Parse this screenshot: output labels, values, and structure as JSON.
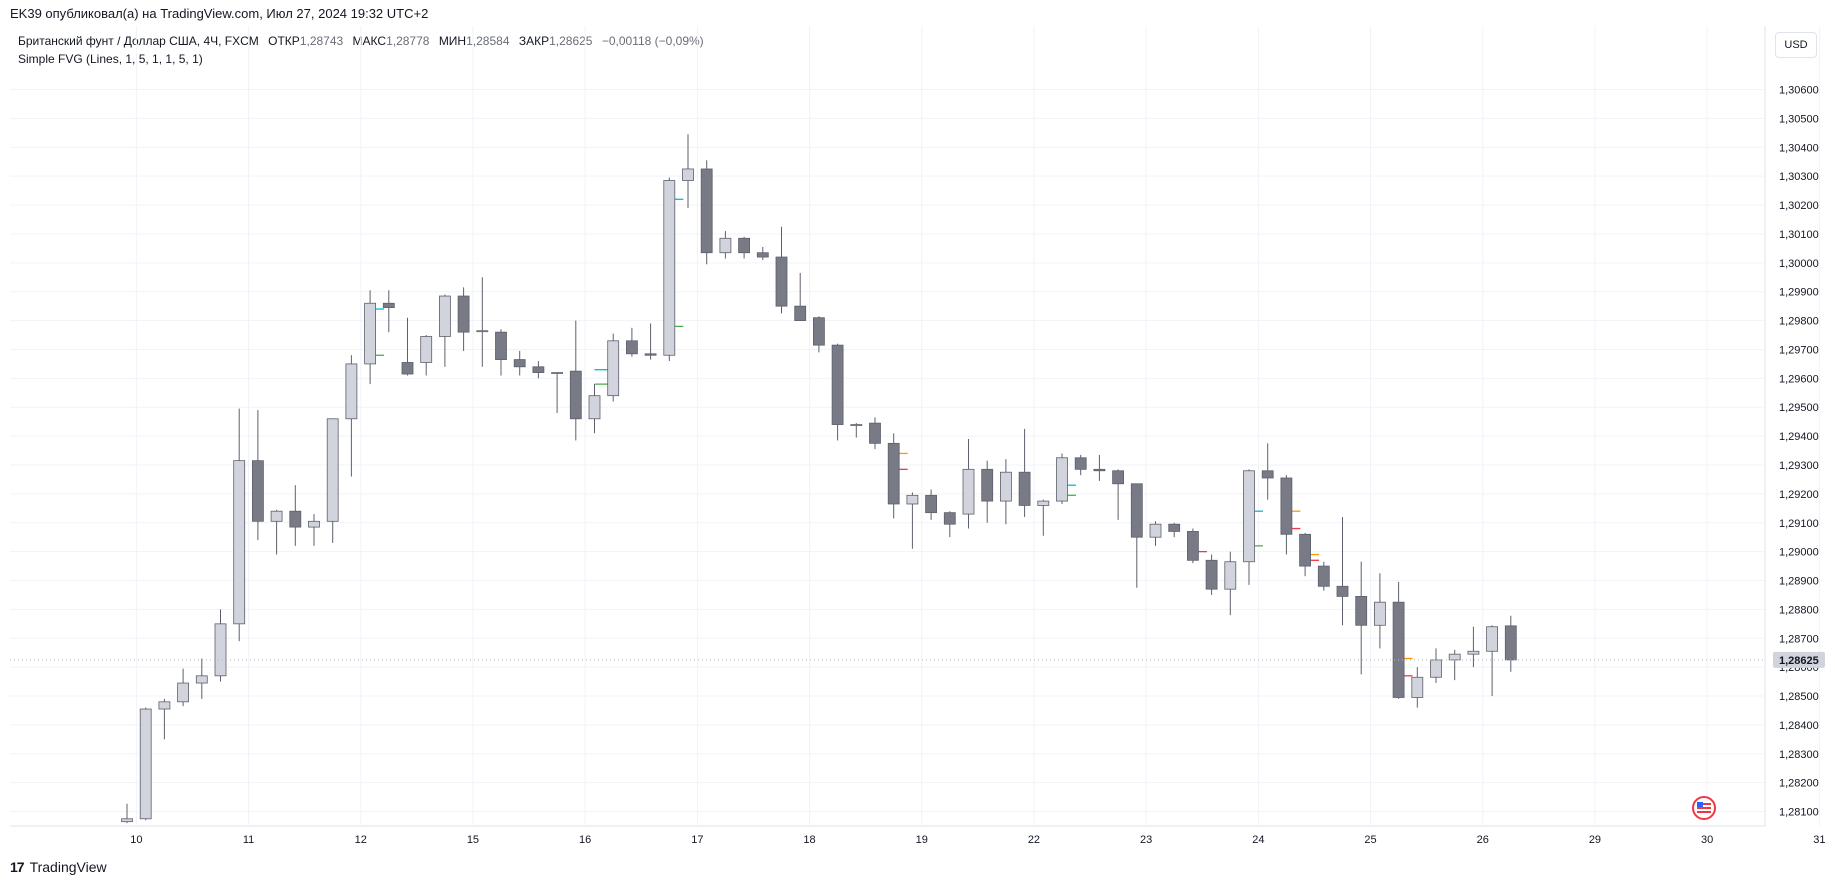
{
  "header": {
    "published": "EK39 опубликовал(а) на TradingView.com, Июл 27, 2024 19:32 UTC+2"
  },
  "legend": {
    "symbol": "Британский фунт / Доллар США, 4Ч, FXCM",
    "open_label": "ОТКР",
    "open": "1,28743",
    "high_label": "МАКС",
    "high": "1,28778",
    "low_label": "МИН",
    "low": "1,28584",
    "close_label": "ЗАКР",
    "close": "1,28625",
    "change": "−0,00118 (−0,09%)",
    "indicator": "Simple FVG (Lines, 1, 5, 1, 1, 5, 1)"
  },
  "currency_button": "USD",
  "footer": {
    "brand": "TradingView",
    "logo": "17"
  },
  "colors": {
    "bull": "#d1d4dc",
    "bear": "#787b86",
    "wick": "#5d606b",
    "grid": "#f0f3fa",
    "fvg_cyan": "#00bcd4",
    "fvg_green": "#4caf50",
    "fvg_red": "#f23645",
    "fvg_orange": "#ff9800"
  },
  "chart_data": {
    "type": "candlestick",
    "timeframe": "4Ч",
    "ylim": [
      1.2805,
      1.3073
    ],
    "y_ticks": [
      "1,28100",
      "1,28200",
      "1,28300",
      "1,28400",
      "1,28500",
      "1,28600",
      "1,28700",
      "1,28800",
      "1,28900",
      "1,29000",
      "1,29100",
      "1,29200",
      "1,29300",
      "1,29400",
      "1,29500",
      "1,29600",
      "1,29700",
      "1,29800",
      "1,29900",
      "1,30000",
      "1,30100",
      "1,30200",
      "1,30300",
      "1,30400",
      "1,30500",
      "1,30600"
    ],
    "x_ticks": [
      {
        "label": "10",
        "bar": 0.5
      },
      {
        "label": "11",
        "bar": 6.5
      },
      {
        "label": "12",
        "bar": 12.5
      },
      {
        "label": "15",
        "bar": 18.5
      },
      {
        "label": "16",
        "bar": 24.5
      },
      {
        "label": "17",
        "bar": 30.5
      },
      {
        "label": "18",
        "bar": 36.5
      },
      {
        "label": "19",
        "bar": 42.5
      },
      {
        "label": "22",
        "bar": 48.5
      },
      {
        "label": "23",
        "bar": 54.5
      },
      {
        "label": "24",
        "bar": 60.5
      },
      {
        "label": "25",
        "bar": 66.5
      },
      {
        "label": "26",
        "bar": 72.5
      },
      {
        "label": "29",
        "bar": 78.5
      },
      {
        "label": "30",
        "bar": 84.5
      },
      {
        "label": "31",
        "bar": 90.5
      }
    ],
    "last_price": "1,28625",
    "candles": [
      {
        "o": 1.28065,
        "h": 1.28127,
        "l": 1.2806,
        "c": 1.28075
      },
      {
        "o": 1.28075,
        "h": 1.2846,
        "l": 1.2807,
        "c": 1.28455
      },
      {
        "o": 1.28455,
        "h": 1.2849,
        "l": 1.2835,
        "c": 1.2848
      },
      {
        "o": 1.2848,
        "h": 1.28595,
        "l": 1.28465,
        "c": 1.28545
      },
      {
        "o": 1.28545,
        "h": 1.2863,
        "l": 1.2849,
        "c": 1.2857
      },
      {
        "o": 1.2857,
        "h": 1.288,
        "l": 1.2855,
        "c": 1.2875
      },
      {
        "o": 1.2875,
        "h": 1.29495,
        "l": 1.2869,
        "c": 1.29315
      },
      {
        "o": 1.29315,
        "h": 1.2949,
        "l": 1.2904,
        "c": 1.29105
      },
      {
        "o": 1.29105,
        "h": 1.29145,
        "l": 1.2899,
        "c": 1.2914
      },
      {
        "o": 1.2914,
        "h": 1.2923,
        "l": 1.2902,
        "c": 1.29085
      },
      {
        "o": 1.29085,
        "h": 1.2913,
        "l": 1.2902,
        "c": 1.29105
      },
      {
        "o": 1.29105,
        "h": 1.2946,
        "l": 1.2903,
        "c": 1.2946
      },
      {
        "o": 1.2946,
        "h": 1.2968,
        "l": 1.2926,
        "c": 1.2965
      },
      {
        "o": 1.2965,
        "h": 1.29905,
        "l": 1.2958,
        "c": 1.2986
      },
      {
        "o": 1.2986,
        "h": 1.29905,
        "l": 1.2976,
        "c": 1.29845
      },
      {
        "o": 1.29655,
        "h": 1.2981,
        "l": 1.2961,
        "c": 1.29615
      },
      {
        "o": 1.29655,
        "h": 1.2975,
        "l": 1.2961,
        "c": 1.29745
      },
      {
        "o": 1.29745,
        "h": 1.2989,
        "l": 1.2964,
        "c": 1.29885
      },
      {
        "o": 1.29885,
        "h": 1.29915,
        "l": 1.29695,
        "c": 1.2976
      },
      {
        "o": 1.29765,
        "h": 1.2995,
        "l": 1.2964,
        "c": 1.29765
      },
      {
        "o": 1.2976,
        "h": 1.2977,
        "l": 1.2961,
        "c": 1.29665
      },
      {
        "o": 1.29665,
        "h": 1.29695,
        "l": 1.2961,
        "c": 1.2964
      },
      {
        "o": 1.2964,
        "h": 1.2966,
        "l": 1.296,
        "c": 1.2962
      },
      {
        "o": 1.2962,
        "h": 1.2962,
        "l": 1.2948,
        "c": 1.2962
      },
      {
        "o": 1.29625,
        "h": 1.298,
        "l": 1.29385,
        "c": 1.2946
      },
      {
        "o": 1.2946,
        "h": 1.2958,
        "l": 1.2941,
        "c": 1.2954
      },
      {
        "o": 1.2954,
        "h": 1.29755,
        "l": 1.2952,
        "c": 1.2973
      },
      {
        "o": 1.2973,
        "h": 1.29775,
        "l": 1.29675,
        "c": 1.29685
      },
      {
        "o": 1.29685,
        "h": 1.2979,
        "l": 1.29665,
        "c": 1.2968
      },
      {
        "o": 1.2968,
        "h": 1.30295,
        "l": 1.2966,
        "c": 1.30285
      },
      {
        "o": 1.30285,
        "h": 1.30445,
        "l": 1.3019,
        "c": 1.30325
      },
      {
        "o": 1.30325,
        "h": 1.30355,
        "l": 1.29995,
        "c": 1.30035
      },
      {
        "o": 1.30035,
        "h": 1.3011,
        "l": 1.30015,
        "c": 1.30085
      },
      {
        "o": 1.30085,
        "h": 1.3009,
        "l": 1.30015,
        "c": 1.30035
      },
      {
        "o": 1.30035,
        "h": 1.30055,
        "l": 1.3001,
        "c": 1.3002
      },
      {
        "o": 1.3002,
        "h": 1.30125,
        "l": 1.29825,
        "c": 1.2985
      },
      {
        "o": 1.2985,
        "h": 1.29965,
        "l": 1.298,
        "c": 1.298
      },
      {
        "o": 1.2981,
        "h": 1.29815,
        "l": 1.2969,
        "c": 1.29715
      },
      {
        "o": 1.29715,
        "h": 1.2972,
        "l": 1.29385,
        "c": 1.2944
      },
      {
        "o": 1.2944,
        "h": 1.29445,
        "l": 1.29395,
        "c": 1.2944
      },
      {
        "o": 1.29445,
        "h": 1.29465,
        "l": 1.29355,
        "c": 1.29375
      },
      {
        "o": 1.29375,
        "h": 1.2941,
        "l": 1.29115,
        "c": 1.29165
      },
      {
        "o": 1.29165,
        "h": 1.29205,
        "l": 1.2901,
        "c": 1.29195
      },
      {
        "o": 1.29195,
        "h": 1.29215,
        "l": 1.2911,
        "c": 1.29135
      },
      {
        "o": 1.29135,
        "h": 1.2914,
        "l": 1.2905,
        "c": 1.29095
      },
      {
        "o": 1.2913,
        "h": 1.2939,
        "l": 1.2908,
        "c": 1.29285
      },
      {
        "o": 1.29285,
        "h": 1.29315,
        "l": 1.291,
        "c": 1.29175
      },
      {
        "o": 1.29175,
        "h": 1.2932,
        "l": 1.29095,
        "c": 1.29275
      },
      {
        "o": 1.29275,
        "h": 1.29425,
        "l": 1.2912,
        "c": 1.2916
      },
      {
        "o": 1.2916,
        "h": 1.2918,
        "l": 1.29055,
        "c": 1.29175
      },
      {
        "o": 1.29175,
        "h": 1.2934,
        "l": 1.29165,
        "c": 1.29325
      },
      {
        "o": 1.29325,
        "h": 1.29335,
        "l": 1.29265,
        "c": 1.29285
      },
      {
        "o": 1.29285,
        "h": 1.29335,
        "l": 1.29245,
        "c": 1.2928
      },
      {
        "o": 1.2928,
        "h": 1.29285,
        "l": 1.2911,
        "c": 1.29235
      },
      {
        "o": 1.29235,
        "h": 1.29235,
        "l": 1.28875,
        "c": 1.2905
      },
      {
        "o": 1.2905,
        "h": 1.29105,
        "l": 1.2902,
        "c": 1.29095
      },
      {
        "o": 1.29095,
        "h": 1.291,
        "l": 1.2905,
        "c": 1.2907
      },
      {
        "o": 1.2907,
        "h": 1.2908,
        "l": 1.2896,
        "c": 1.2897
      },
      {
        "o": 1.2897,
        "h": 1.2899,
        "l": 1.2885,
        "c": 1.2887
      },
      {
        "o": 1.2887,
        "h": 1.29,
        "l": 1.2878,
        "c": 1.28965
      },
      {
        "o": 1.28965,
        "h": 1.29285,
        "l": 1.28885,
        "c": 1.2928
      },
      {
        "o": 1.2928,
        "h": 1.29375,
        "l": 1.2918,
        "c": 1.29255
      },
      {
        "o": 1.29255,
        "h": 1.29265,
        "l": 1.2899,
        "c": 1.2906
      },
      {
        "o": 1.2906,
        "h": 1.29065,
        "l": 1.28915,
        "c": 1.2895
      },
      {
        "o": 1.2895,
        "h": 1.28965,
        "l": 1.28865,
        "c": 1.2888
      },
      {
        "o": 1.2888,
        "h": 1.2912,
        "l": 1.28745,
        "c": 1.28845
      },
      {
        "o": 1.28845,
        "h": 1.28965,
        "l": 1.28575,
        "c": 1.28745
      },
      {
        "o": 1.28745,
        "h": 1.28925,
        "l": 1.28665,
        "c": 1.28825
      },
      {
        "o": 1.28825,
        "h": 1.28895,
        "l": 1.2849,
        "c": 1.28495
      },
      {
        "o": 1.28495,
        "h": 1.286,
        "l": 1.2846,
        "c": 1.28565
      },
      {
        "o": 1.28565,
        "h": 1.28665,
        "l": 1.28545,
        "c": 1.28625
      },
      {
        "o": 1.28625,
        "h": 1.2866,
        "l": 1.28555,
        "c": 1.28645
      },
      {
        "o": 1.28645,
        "h": 1.2874,
        "l": 1.286,
        "c": 1.28655
      },
      {
        "o": 1.28655,
        "h": 1.28745,
        "l": 1.285,
        "c": 1.2874
      },
      {
        "o": 1.28743,
        "h": 1.28778,
        "l": 1.28584,
        "c": 1.28625
      }
    ],
    "fvg_lines": [
      {
        "bar": 13,
        "price": 1.2984,
        "color": "cyan"
      },
      {
        "bar": 13,
        "price": 1.2968,
        "color": "green"
      },
      {
        "bar": 25,
        "price": 1.2963,
        "color": "cyan"
      },
      {
        "bar": 25,
        "price": 1.2958,
        "color": "green"
      },
      {
        "bar": 29,
        "price": 1.3022,
        "color": "cyan"
      },
      {
        "bar": 29,
        "price": 1.2978,
        "color": "green"
      },
      {
        "bar": 41,
        "price": 1.2934,
        "color": "orange"
      },
      {
        "bar": 41,
        "price": 1.29285,
        "color": "red"
      },
      {
        "bar": 50,
        "price": 1.2923,
        "color": "cyan"
      },
      {
        "bar": 50,
        "price": 1.29195,
        "color": "green"
      },
      {
        "bar": 57,
        "price": 1.29,
        "color": "red"
      },
      {
        "bar": 60,
        "price": 1.2914,
        "color": "cyan"
      },
      {
        "bar": 60,
        "price": 1.2902,
        "color": "green"
      },
      {
        "bar": 62,
        "price": 1.2914,
        "color": "orange"
      },
      {
        "bar": 62,
        "price": 1.2908,
        "color": "red"
      },
      {
        "bar": 63,
        "price": 1.2899,
        "color": "orange"
      },
      {
        "bar": 63,
        "price": 1.2897,
        "color": "red"
      },
      {
        "bar": 68,
        "price": 1.2863,
        "color": "orange"
      },
      {
        "bar": 68,
        "price": 1.2857,
        "color": "red"
      }
    ]
  }
}
